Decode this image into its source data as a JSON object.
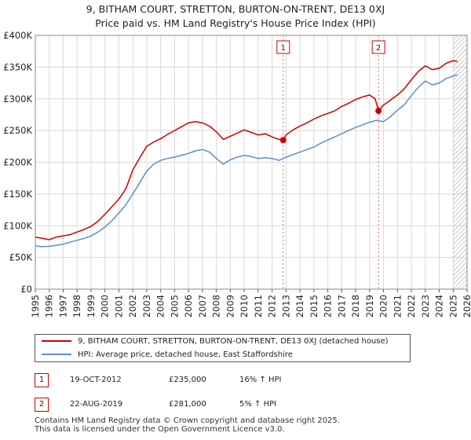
{
  "chart_data": {
    "type": "line",
    "title": "9, BITHAM COURT, STRETTON, BURTON-ON-TRENT, DE13 0XJ",
    "subtitle": "Price paid vs. HM Land Registry's House Price Index (HPI)",
    "xlabel": "",
    "ylabel": "",
    "xlim": [
      1995,
      2026
    ],
    "ylim": [
      0,
      400000
    ],
    "grid": true,
    "x_ticks": [
      "1995",
      "1996",
      "1997",
      "1998",
      "1999",
      "2000",
      "2001",
      "2002",
      "2003",
      "2004",
      "2005",
      "2006",
      "2007",
      "2008",
      "2009",
      "2010",
      "2011",
      "2012",
      "2013",
      "2014",
      "2015",
      "2016",
      "2017",
      "2018",
      "2019",
      "2020",
      "2021",
      "2022",
      "2023",
      "2024",
      "2025",
      "2026"
    ],
    "y_ticks": [
      {
        "value": 0,
        "label": "£0"
      },
      {
        "value": 50000,
        "label": "£50K"
      },
      {
        "value": 100000,
        "label": "£100K"
      },
      {
        "value": 150000,
        "label": "£150K"
      },
      {
        "value": 200000,
        "label": "£200K"
      },
      {
        "value": 250000,
        "label": "£250K"
      },
      {
        "value": 300000,
        "label": "£300K"
      },
      {
        "value": 350000,
        "label": "£350K"
      },
      {
        "value": 400000,
        "label": "£400K"
      }
    ],
    "series": [
      {
        "name": "9, BITHAM COURT, STRETTON, BURTON-ON-TRENT, DE13 0XJ (detached house)",
        "color": "#cc0000",
        "x": [
          1995.0,
          1995.5,
          1996.0,
          1996.5,
          1997.0,
          1997.5,
          1998.0,
          1998.5,
          1999.0,
          1999.5,
          2000.0,
          2000.5,
          2001.0,
          2001.5,
          2002.0,
          2002.5,
          2003.0,
          2003.5,
          2004.0,
          2004.5,
          2005.0,
          2005.5,
          2006.0,
          2006.5,
          2007.0,
          2007.5,
          2008.0,
          2008.5,
          2009.0,
          2009.5,
          2010.0,
          2010.5,
          2011.0,
          2011.5,
          2012.0,
          2012.5,
          2012.8,
          2013.0,
          2013.5,
          2014.0,
          2014.5,
          2015.0,
          2015.5,
          2016.0,
          2016.5,
          2017.0,
          2017.5,
          2018.0,
          2018.5,
          2019.0,
          2019.4,
          2019.64,
          2020.0,
          2020.5,
          2021.0,
          2021.5,
          2022.0,
          2022.5,
          2023.0,
          2023.5,
          2024.0,
          2024.5,
          2025.0,
          2025.3
        ],
        "y": [
          82000,
          80000,
          78000,
          82000,
          84000,
          86000,
          90000,
          94000,
          99000,
          107000,
          118000,
          130000,
          142000,
          158000,
          188000,
          207000,
          225000,
          232000,
          237000,
          244000,
          250000,
          256000,
          262000,
          264000,
          262000,
          257000,
          248000,
          236000,
          241000,
          246000,
          251000,
          247000,
          243000,
          245000,
          240000,
          236000,
          235000,
          243000,
          251000,
          257000,
          262000,
          268000,
          273000,
          277000,
          281000,
          288000,
          293000,
          299000,
          303000,
          306000,
          300000,
          281000,
          290000,
          298000,
          306000,
          316000,
          330000,
          343000,
          352000,
          346000,
          348000,
          356000,
          360000,
          359000
        ]
      },
      {
        "name": "HPI: Average price, detached house, East Staffordshire",
        "color": "#5b8ec7",
        "x": [
          1995.0,
          1995.5,
          1996.0,
          1996.5,
          1997.0,
          1997.5,
          1998.0,
          1998.5,
          1999.0,
          1999.5,
          2000.0,
          2000.5,
          2001.0,
          2001.5,
          2002.0,
          2002.5,
          2003.0,
          2003.5,
          2004.0,
          2004.5,
          2005.0,
          2005.5,
          2006.0,
          2006.5,
          2007.0,
          2007.5,
          2008.0,
          2008.5,
          2009.0,
          2009.5,
          2010.0,
          2010.5,
          2011.0,
          2011.5,
          2012.0,
          2012.5,
          2013.0,
          2013.5,
          2014.0,
          2014.5,
          2015.0,
          2015.5,
          2016.0,
          2016.5,
          2017.0,
          2017.5,
          2018.0,
          2018.5,
          2019.0,
          2019.5,
          2020.0,
          2020.5,
          2021.0,
          2021.5,
          2022.0,
          2022.5,
          2023.0,
          2023.5,
          2024.0,
          2024.5,
          2025.0,
          2025.3
        ],
        "y": [
          68000,
          67000,
          67500,
          69000,
          71000,
          74000,
          77000,
          80000,
          84000,
          90000,
          98000,
          108000,
          120000,
          133000,
          150000,
          168000,
          186000,
          197000,
          203000,
          206000,
          208000,
          211000,
          214000,
          218000,
          220000,
          216000,
          206000,
          197000,
          204000,
          208000,
          211000,
          209000,
          206000,
          207000,
          206000,
          203000,
          208000,
          212000,
          216000,
          220000,
          224000,
          230000,
          235000,
          240000,
          245000,
          250000,
          255000,
          259000,
          263000,
          266000,
          264000,
          272000,
          282000,
          291000,
          305000,
          318000,
          328000,
          322000,
          325000,
          332000,
          336000,
          338000
        ]
      }
    ],
    "annotations": [
      {
        "label": "1",
        "x": 2012.8,
        "y": 235000,
        "date": "19-OCT-2012",
        "price": "£235,000",
        "hpi": "16% ↑ HPI"
      },
      {
        "label": "2",
        "x": 2019.64,
        "y": 281000,
        "date": "22-AUG-2019",
        "price": "£281,000",
        "hpi": "5% ↑ HPI"
      }
    ],
    "hatch_from": 2025.0,
    "legend_position": "bottom"
  },
  "footer": {
    "line1": "Contains HM Land Registry data © Crown copyright and database right 2025.",
    "line2": "This data is licensed under the Open Government Licence v3.0."
  }
}
